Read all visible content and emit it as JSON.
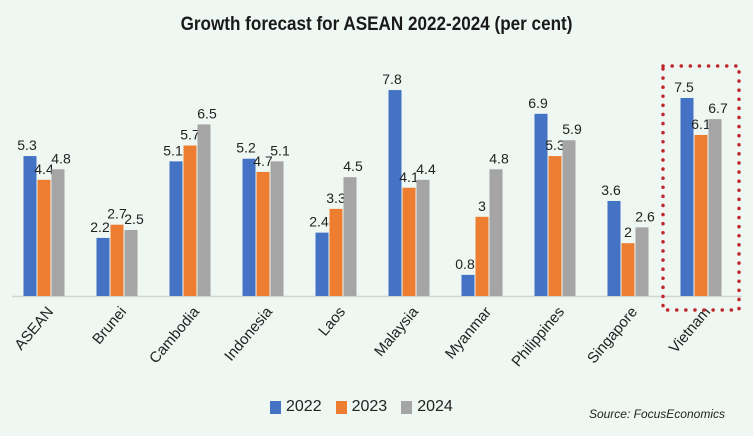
{
  "chart_data": {
    "type": "bar",
    "title": "Growth forecast for ASEAN 2022-2024 (per cent)",
    "xlabel": "",
    "ylabel": "",
    "ylim": [
      0,
      8
    ],
    "grid": false,
    "legend_position": "bottom",
    "categories": [
      "ASEAN",
      "Brunei",
      "Cambodia",
      "Indonesia",
      "Laos",
      "Malaysia",
      "Myanmar",
      "Philippines",
      "Singapore",
      "Vietnam"
    ],
    "series": [
      {
        "name": "2022",
        "color": "#4472c4",
        "values": [
          5.3,
          2.2,
          5.1,
          5.2,
          2.4,
          7.8,
          0.8,
          6.9,
          3.6,
          7.5
        ],
        "labels": [
          "5.3",
          "2.2",
          "5.1",
          "5.2",
          "2.4",
          "7.8",
          "0.8",
          "6.9",
          "3.6",
          "7.5"
        ]
      },
      {
        "name": "2023",
        "color": "#ed7d31",
        "values": [
          4.4,
          2.7,
          5.7,
          4.7,
          3.3,
          4.1,
          3,
          5.3,
          2,
          6.1
        ],
        "labels": [
          "4.4",
          "2.7",
          "5.7",
          "4.7",
          "3.3",
          "4.1",
          "3",
          "5.3",
          "2",
          "6.1"
        ]
      },
      {
        "name": "2024",
        "color": "#a5a5a5",
        "values": [
          4.8,
          2.5,
          6.5,
          5.1,
          4.5,
          4.4,
          4.8,
          5.9,
          2.6,
          6.7
        ],
        "labels": [
          "4.8",
          "2.5",
          "6.5",
          "5.1",
          "4.5",
          "4.4",
          "4.8",
          "5.9",
          "2.6",
          "6.7"
        ]
      }
    ],
    "highlight": {
      "category": "Vietnam",
      "color": "#c0272d"
    },
    "source": "Source: FocusEconomics"
  }
}
